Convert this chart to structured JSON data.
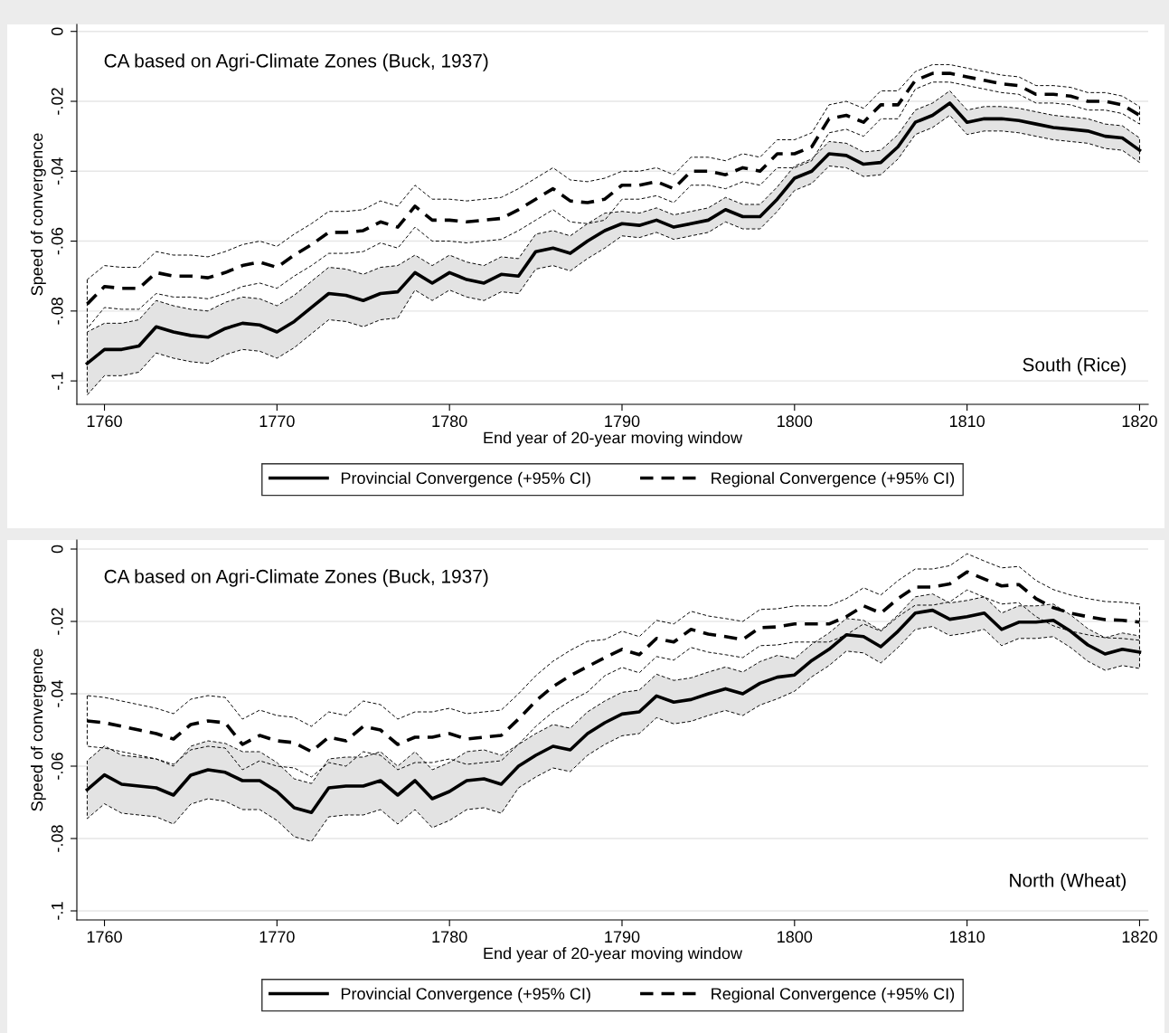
{
  "chart_data": [
    {
      "type": "line",
      "xlabel": "End year of 20-year moving window",
      "ylabel": "Speed of convergence",
      "annotations": [
        "CA based on Agri-Climate Zones (Buck, 1937)",
        "South (Rice)"
      ],
      "x": [
        1759,
        1760,
        1761,
        1762,
        1763,
        1764,
        1765,
        1766,
        1767,
        1768,
        1769,
        1770,
        1771,
        1772,
        1773,
        1774,
        1775,
        1776,
        1777,
        1778,
        1779,
        1780,
        1781,
        1782,
        1783,
        1784,
        1785,
        1786,
        1787,
        1788,
        1789,
        1790,
        1791,
        1792,
        1793,
        1794,
        1795,
        1796,
        1797,
        1798,
        1799,
        1800,
        1801,
        1802,
        1803,
        1804,
        1805,
        1806,
        1807,
        1808,
        1809,
        1810,
        1811,
        1812,
        1813,
        1814,
        1815,
        1816,
        1817,
        1818,
        1819,
        1820
      ],
      "xlim": [
        1758.4,
        1820.5
      ],
      "xticks": [
        1760,
        1770,
        1780,
        1790,
        1800,
        1810,
        1820
      ],
      "ylim": [
        -0.1067,
        0.002
      ],
      "yticks": [
        {
          "value": 0,
          "label": "0"
        },
        {
          "value": -0.02,
          "label": "-.02"
        },
        {
          "value": -0.04,
          "label": "-.04"
        },
        {
          "value": -0.06,
          "label": "-.06"
        },
        {
          "value": -0.08,
          "label": "-.08"
        },
        {
          "value": -0.1,
          "label": "-.1"
        }
      ],
      "grid": "y",
      "legend": "bottom",
      "series": [
        {
          "name": "Provincial Convergence (+95% CI)",
          "color": "#000000",
          "line_style": "solid",
          "values": [
            -0.095,
            -0.091,
            -0.091,
            -0.09,
            -0.0845,
            -0.086,
            -0.087,
            -0.0875,
            -0.085,
            -0.0835,
            -0.084,
            -0.086,
            -0.083,
            -0.079,
            -0.075,
            -0.0755,
            -0.077,
            -0.075,
            -0.0745,
            -0.069,
            -0.072,
            -0.069,
            -0.071,
            -0.072,
            -0.0695,
            -0.07,
            -0.063,
            -0.062,
            -0.0635,
            -0.06,
            -0.057,
            -0.055,
            -0.0555,
            -0.054,
            -0.056,
            -0.055,
            -0.054,
            -0.051,
            -0.053,
            -0.053,
            -0.048,
            -0.042,
            -0.04,
            -0.035,
            -0.0355,
            -0.038,
            -0.0375,
            -0.033,
            -0.026,
            -0.024,
            -0.0205,
            -0.026,
            -0.025,
            -0.025,
            -0.0255,
            -0.0265,
            -0.0275,
            -0.028,
            -0.0285,
            -0.03,
            -0.0305,
            -0.034
          ],
          "lower": [
            -0.104,
            -0.0985,
            -0.0985,
            -0.0975,
            -0.092,
            -0.0935,
            -0.0945,
            -0.095,
            -0.0925,
            -0.091,
            -0.0915,
            -0.0935,
            -0.0905,
            -0.0865,
            -0.0825,
            -0.083,
            -0.0845,
            -0.0825,
            -0.082,
            -0.074,
            -0.077,
            -0.074,
            -0.076,
            -0.077,
            -0.0745,
            -0.075,
            -0.068,
            -0.067,
            -0.0685,
            -0.065,
            -0.062,
            -0.0585,
            -0.059,
            -0.0575,
            -0.0595,
            -0.0585,
            -0.0575,
            -0.0545,
            -0.0565,
            -0.0565,
            -0.0515,
            -0.0455,
            -0.0435,
            -0.0385,
            -0.039,
            -0.0415,
            -0.041,
            -0.0365,
            -0.0295,
            -0.0275,
            -0.024,
            -0.0295,
            -0.0285,
            -0.0285,
            -0.029,
            -0.03,
            -0.031,
            -0.0315,
            -0.032,
            -0.0335,
            -0.034,
            -0.0375
          ],
          "upper": [
            -0.086,
            -0.0835,
            -0.0835,
            -0.0825,
            -0.077,
            -0.0785,
            -0.0795,
            -0.08,
            -0.0775,
            -0.076,
            -0.0765,
            -0.0785,
            -0.0755,
            -0.0715,
            -0.0675,
            -0.068,
            -0.0695,
            -0.0675,
            -0.067,
            -0.064,
            -0.067,
            -0.064,
            -0.066,
            -0.067,
            -0.0645,
            -0.065,
            -0.058,
            -0.057,
            -0.0585,
            -0.055,
            -0.052,
            -0.0515,
            -0.052,
            -0.0505,
            -0.0525,
            -0.0515,
            -0.0505,
            -0.0475,
            -0.0495,
            -0.0495,
            -0.0445,
            -0.0385,
            -0.0365,
            -0.0315,
            -0.032,
            -0.0345,
            -0.034,
            -0.0295,
            -0.0225,
            -0.0205,
            -0.017,
            -0.0225,
            -0.0215,
            -0.0215,
            -0.022,
            -0.023,
            -0.024,
            -0.0245,
            -0.025,
            -0.0265,
            -0.027,
            -0.0305
          ]
        },
        {
          "name": "Regional Convergence (+95% CI)",
          "color": "#000000",
          "line_style": "dashed",
          "values": [
            -0.078,
            -0.073,
            -0.0735,
            -0.0735,
            -0.069,
            -0.07,
            -0.07,
            -0.0705,
            -0.069,
            -0.067,
            -0.066,
            -0.0675,
            -0.064,
            -0.061,
            -0.0575,
            -0.0575,
            -0.057,
            -0.0545,
            -0.056,
            -0.05,
            -0.054,
            -0.054,
            -0.0545,
            -0.054,
            -0.0535,
            -0.051,
            -0.048,
            -0.045,
            -0.0485,
            -0.049,
            -0.048,
            -0.044,
            -0.044,
            -0.043,
            -0.045,
            -0.04,
            -0.04,
            -0.041,
            -0.039,
            -0.04,
            -0.035,
            -0.035,
            -0.033,
            -0.025,
            -0.024,
            -0.026,
            -0.021,
            -0.021,
            -0.014,
            -0.012,
            -0.012,
            -0.013,
            -0.014,
            -0.015,
            -0.0155,
            -0.018,
            -0.018,
            -0.0185,
            -0.02,
            -0.02,
            -0.021,
            -0.024
          ],
          "lower": [
            -0.085,
            -0.079,
            -0.0795,
            -0.0795,
            -0.075,
            -0.076,
            -0.076,
            -0.0765,
            -0.075,
            -0.073,
            -0.072,
            -0.0735,
            -0.07,
            -0.067,
            -0.0635,
            -0.0635,
            -0.063,
            -0.0605,
            -0.062,
            -0.056,
            -0.06,
            -0.06,
            -0.0605,
            -0.06,
            -0.0595,
            -0.057,
            -0.054,
            -0.051,
            -0.0545,
            -0.055,
            -0.054,
            -0.048,
            -0.048,
            -0.047,
            -0.049,
            -0.044,
            -0.044,
            -0.045,
            -0.043,
            -0.044,
            -0.039,
            -0.039,
            -0.037,
            -0.029,
            -0.028,
            -0.03,
            -0.025,
            -0.025,
            -0.0165,
            -0.0145,
            -0.0145,
            -0.0155,
            -0.0165,
            -0.0175,
            -0.018,
            -0.0205,
            -0.0205,
            -0.021,
            -0.0225,
            -0.0225,
            -0.0235,
            -0.0265
          ],
          "upper": [
            -0.071,
            -0.067,
            -0.0675,
            -0.0675,
            -0.063,
            -0.064,
            -0.064,
            -0.0645,
            -0.063,
            -0.061,
            -0.06,
            -0.0615,
            -0.058,
            -0.055,
            -0.0515,
            -0.0515,
            -0.051,
            -0.0485,
            -0.05,
            -0.044,
            -0.048,
            -0.048,
            -0.0485,
            -0.048,
            -0.0475,
            -0.045,
            -0.042,
            -0.039,
            -0.0425,
            -0.043,
            -0.042,
            -0.04,
            -0.04,
            -0.039,
            -0.041,
            -0.036,
            -0.036,
            -0.037,
            -0.035,
            -0.036,
            -0.031,
            -0.031,
            -0.029,
            -0.021,
            -0.02,
            -0.022,
            -0.017,
            -0.017,
            -0.0115,
            -0.0095,
            -0.0095,
            -0.0105,
            -0.0115,
            -0.0125,
            -0.013,
            -0.0155,
            -0.0155,
            -0.016,
            -0.0175,
            -0.0175,
            -0.0185,
            -0.0215
          ]
        }
      ]
    },
    {
      "type": "line",
      "xlabel": "End year of 20-year moving window",
      "ylabel": "Speed of convergence",
      "annotations": [
        "CA based on Agri-Climate Zones (Buck, 1937)",
        "North (Wheat)"
      ],
      "x": [
        1759,
        1760,
        1761,
        1762,
        1763,
        1764,
        1765,
        1766,
        1767,
        1768,
        1769,
        1770,
        1771,
        1772,
        1773,
        1774,
        1775,
        1776,
        1777,
        1778,
        1779,
        1780,
        1781,
        1782,
        1783,
        1784,
        1785,
        1786,
        1787,
        1788,
        1789,
        1790,
        1791,
        1792,
        1793,
        1794,
        1795,
        1796,
        1797,
        1798,
        1799,
        1800,
        1801,
        1802,
        1803,
        1804,
        1805,
        1806,
        1807,
        1808,
        1809,
        1810,
        1811,
        1812,
        1813,
        1814,
        1815,
        1816,
        1817,
        1818,
        1819,
        1820
      ],
      "xlim": [
        1758.4,
        1820.5
      ],
      "xticks": [
        1760,
        1770,
        1780,
        1790,
        1800,
        1810,
        1820
      ],
      "ylim": [
        -0.1025,
        0.0025
      ],
      "yticks": [
        {
          "value": 0,
          "label": "0"
        },
        {
          "value": -0.02,
          "label": "-.02"
        },
        {
          "value": -0.04,
          "label": "-.04"
        },
        {
          "value": -0.06,
          "label": "-.06"
        },
        {
          "value": -0.08,
          "label": "-.08"
        },
        {
          "value": -0.1,
          "label": "-.1"
        }
      ],
      "grid": "y",
      "legend": "bottom",
      "series": [
        {
          "name": "Provincial Convergence (+95% CI)",
          "color": "#000000",
          "line_style": "solid",
          "values": [
            -0.0665,
            -0.0624,
            -0.065,
            -0.0655,
            -0.066,
            -0.068,
            -0.0625,
            -0.061,
            -0.0617,
            -0.064,
            -0.064,
            -0.067,
            -0.0715,
            -0.0728,
            -0.066,
            -0.0655,
            -0.0655,
            -0.064,
            -0.068,
            -0.064,
            -0.069,
            -0.067,
            -0.064,
            -0.0635,
            -0.065,
            -0.06,
            -0.057,
            -0.0545,
            -0.0555,
            -0.051,
            -0.048,
            -0.0456,
            -0.045,
            -0.0406,
            -0.0423,
            -0.0416,
            -0.04,
            -0.0386,
            -0.04,
            -0.0371,
            -0.0354,
            -0.0348,
            -0.0308,
            -0.0277,
            -0.0237,
            -0.0242,
            -0.027,
            -0.0227,
            -0.0177,
            -0.0169,
            -0.0194,
            -0.0187,
            -0.0177,
            -0.0222,
            -0.0202,
            -0.0202,
            -0.0197,
            -0.0227,
            -0.0265,
            -0.029,
            -0.0277,
            -0.0285
          ],
          "lower": [
            -0.0745,
            -0.0704,
            -0.073,
            -0.0735,
            -0.074,
            -0.076,
            -0.0705,
            -0.069,
            -0.0697,
            -0.072,
            -0.072,
            -0.075,
            -0.0795,
            -0.0808,
            -0.074,
            -0.0735,
            -0.0735,
            -0.072,
            -0.076,
            -0.072,
            -0.077,
            -0.075,
            -0.072,
            -0.0715,
            -0.073,
            -0.066,
            -0.063,
            -0.0605,
            -0.0615,
            -0.057,
            -0.054,
            -0.0516,
            -0.051,
            -0.0466,
            -0.0483,
            -0.0476,
            -0.046,
            -0.0446,
            -0.046,
            -0.0431,
            -0.0414,
            -0.0393,
            -0.0353,
            -0.0322,
            -0.0282,
            -0.0287,
            -0.0315,
            -0.0272,
            -0.0222,
            -0.0214,
            -0.0239,
            -0.0232,
            -0.0222,
            -0.0267,
            -0.0247,
            -0.0247,
            -0.0242,
            -0.0272,
            -0.031,
            -0.0335,
            -0.0322,
            -0.033
          ],
          "upper": [
            -0.0585,
            -0.0544,
            -0.057,
            -0.0575,
            -0.058,
            -0.06,
            -0.0545,
            -0.053,
            -0.0537,
            -0.056,
            -0.056,
            -0.059,
            -0.0635,
            -0.0648,
            -0.058,
            -0.0575,
            -0.0575,
            -0.056,
            -0.06,
            -0.056,
            -0.061,
            -0.059,
            -0.056,
            -0.0555,
            -0.057,
            -0.054,
            -0.051,
            -0.0485,
            -0.0495,
            -0.045,
            -0.042,
            -0.0396,
            -0.039,
            -0.0346,
            -0.0363,
            -0.0356,
            -0.034,
            -0.0326,
            -0.034,
            -0.0311,
            -0.0294,
            -0.0303,
            -0.0263,
            -0.0232,
            -0.0192,
            -0.0197,
            -0.0225,
            -0.0182,
            -0.0132,
            -0.0124,
            -0.0149,
            -0.0142,
            -0.0132,
            -0.0177,
            -0.0157,
            -0.0157,
            -0.0152,
            -0.0182,
            -0.022,
            -0.0245,
            -0.0232,
            -0.024
          ]
        },
        {
          "name": "Regional Convergence (+95% CI)",
          "color": "#000000",
          "line_style": "dashed",
          "values": [
            -0.0475,
            -0.048,
            -0.049,
            -0.05,
            -0.051,
            -0.0525,
            -0.0485,
            -0.0475,
            -0.048,
            -0.054,
            -0.0515,
            -0.053,
            -0.0535,
            -0.056,
            -0.052,
            -0.053,
            -0.049,
            -0.05,
            -0.054,
            -0.052,
            -0.052,
            -0.051,
            -0.0525,
            -0.052,
            -0.0515,
            -0.047,
            -0.042,
            -0.038,
            -0.035,
            -0.0325,
            -0.03,
            -0.0277,
            -0.0292,
            -0.0247,
            -0.0257,
            -0.0222,
            -0.0235,
            -0.0242,
            -0.025,
            -0.0217,
            -0.0215,
            -0.0207,
            -0.0207,
            -0.0207,
            -0.0187,
            -0.0157,
            -0.0177,
            -0.0137,
            -0.0105,
            -0.0105,
            -0.0096,
            -0.0063,
            -0.0083,
            -0.0102,
            -0.0098,
            -0.0137,
            -0.0162,
            -0.0177,
            -0.0187,
            -0.0195,
            -0.0197,
            -0.0202
          ],
          "lower": [
            -0.0545,
            -0.055,
            -0.056,
            -0.057,
            -0.058,
            -0.0595,
            -0.0555,
            -0.0545,
            -0.055,
            -0.061,
            -0.0585,
            -0.06,
            -0.0605,
            -0.063,
            -0.059,
            -0.06,
            -0.056,
            -0.057,
            -0.061,
            -0.059,
            -0.059,
            -0.058,
            -0.0595,
            -0.059,
            -0.0585,
            -0.054,
            -0.049,
            -0.045,
            -0.042,
            -0.0395,
            -0.035,
            -0.0327,
            -0.0342,
            -0.0297,
            -0.0307,
            -0.0272,
            -0.0285,
            -0.0292,
            -0.03,
            -0.0267,
            -0.0265,
            -0.0257,
            -0.0257,
            -0.0257,
            -0.0237,
            -0.0207,
            -0.0227,
            -0.0187,
            -0.0155,
            -0.0155,
            -0.0146,
            -0.0113,
            -0.0133,
            -0.0152,
            -0.0148,
            -0.0187,
            -0.0212,
            -0.0227,
            -0.0237,
            -0.0245,
            -0.0247,
            -0.0252
          ],
          "upper": [
            -0.0405,
            -0.041,
            -0.042,
            -0.043,
            -0.044,
            -0.0455,
            -0.0415,
            -0.0405,
            -0.041,
            -0.047,
            -0.0445,
            -0.046,
            -0.0465,
            -0.049,
            -0.045,
            -0.046,
            -0.042,
            -0.043,
            -0.047,
            -0.045,
            -0.045,
            -0.044,
            -0.0455,
            -0.045,
            -0.0445,
            -0.04,
            -0.035,
            -0.031,
            -0.028,
            -0.0255,
            -0.025,
            -0.0227,
            -0.0242,
            -0.0197,
            -0.0207,
            -0.0172,
            -0.0185,
            -0.0192,
            -0.02,
            -0.0167,
            -0.0165,
            -0.0157,
            -0.0157,
            -0.0157,
            -0.0137,
            -0.0107,
            -0.0127,
            -0.0087,
            -0.0055,
            -0.0055,
            -0.0046,
            -0.0013,
            -0.0033,
            -0.0052,
            -0.0048,
            -0.0087,
            -0.0112,
            -0.0127,
            -0.0137,
            -0.0145,
            -0.0147,
            -0.0152
          ]
        }
      ]
    }
  ]
}
